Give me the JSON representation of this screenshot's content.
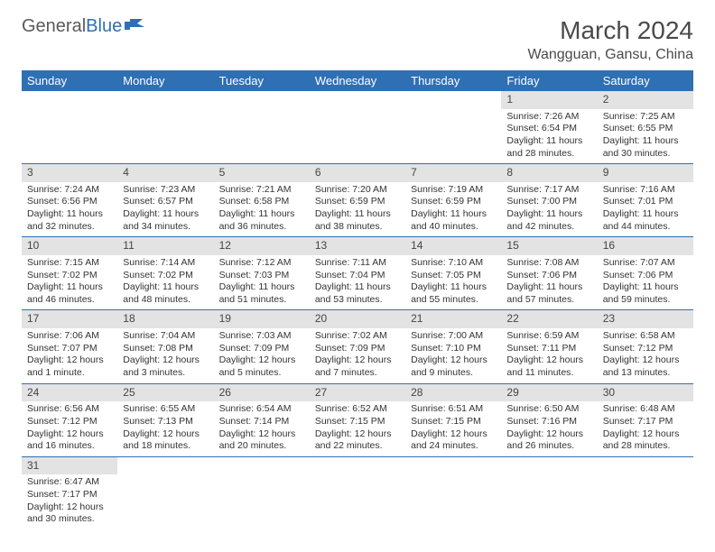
{
  "logo": {
    "text_a": "General",
    "text_b": "Blue"
  },
  "title": "March 2024",
  "location": "Wangguan, Gansu, China",
  "colors": {
    "header_bg": "#2f6fb4",
    "header_fg": "#ffffff",
    "daynum_bg": "#e3e3e3",
    "rule": "#2f6fb4",
    "logo_gray": "#5a5a5a",
    "logo_blue": "#2f6fb4"
  },
  "daynames": [
    "Sunday",
    "Monday",
    "Tuesday",
    "Wednesday",
    "Thursday",
    "Friday",
    "Saturday"
  ],
  "first_weekday": 5,
  "days": [
    {
      "n": 1,
      "sunrise": "7:26 AM",
      "sunset": "6:54 PM",
      "daylight": "11 hours and 28 minutes."
    },
    {
      "n": 2,
      "sunrise": "7:25 AM",
      "sunset": "6:55 PM",
      "daylight": "11 hours and 30 minutes."
    },
    {
      "n": 3,
      "sunrise": "7:24 AM",
      "sunset": "6:56 PM",
      "daylight": "11 hours and 32 minutes."
    },
    {
      "n": 4,
      "sunrise": "7:23 AM",
      "sunset": "6:57 PM",
      "daylight": "11 hours and 34 minutes."
    },
    {
      "n": 5,
      "sunrise": "7:21 AM",
      "sunset": "6:58 PM",
      "daylight": "11 hours and 36 minutes."
    },
    {
      "n": 6,
      "sunrise": "7:20 AM",
      "sunset": "6:59 PM",
      "daylight": "11 hours and 38 minutes."
    },
    {
      "n": 7,
      "sunrise": "7:19 AM",
      "sunset": "6:59 PM",
      "daylight": "11 hours and 40 minutes."
    },
    {
      "n": 8,
      "sunrise": "7:17 AM",
      "sunset": "7:00 PM",
      "daylight": "11 hours and 42 minutes."
    },
    {
      "n": 9,
      "sunrise": "7:16 AM",
      "sunset": "7:01 PM",
      "daylight": "11 hours and 44 minutes."
    },
    {
      "n": 10,
      "sunrise": "7:15 AM",
      "sunset": "7:02 PM",
      "daylight": "11 hours and 46 minutes."
    },
    {
      "n": 11,
      "sunrise": "7:14 AM",
      "sunset": "7:02 PM",
      "daylight": "11 hours and 48 minutes."
    },
    {
      "n": 12,
      "sunrise": "7:12 AM",
      "sunset": "7:03 PM",
      "daylight": "11 hours and 51 minutes."
    },
    {
      "n": 13,
      "sunrise": "7:11 AM",
      "sunset": "7:04 PM",
      "daylight": "11 hours and 53 minutes."
    },
    {
      "n": 14,
      "sunrise": "7:10 AM",
      "sunset": "7:05 PM",
      "daylight": "11 hours and 55 minutes."
    },
    {
      "n": 15,
      "sunrise": "7:08 AM",
      "sunset": "7:06 PM",
      "daylight": "11 hours and 57 minutes."
    },
    {
      "n": 16,
      "sunrise": "7:07 AM",
      "sunset": "7:06 PM",
      "daylight": "11 hours and 59 minutes."
    },
    {
      "n": 17,
      "sunrise": "7:06 AM",
      "sunset": "7:07 PM",
      "daylight": "12 hours and 1 minute."
    },
    {
      "n": 18,
      "sunrise": "7:04 AM",
      "sunset": "7:08 PM",
      "daylight": "12 hours and 3 minutes."
    },
    {
      "n": 19,
      "sunrise": "7:03 AM",
      "sunset": "7:09 PM",
      "daylight": "12 hours and 5 minutes."
    },
    {
      "n": 20,
      "sunrise": "7:02 AM",
      "sunset": "7:09 PM",
      "daylight": "12 hours and 7 minutes."
    },
    {
      "n": 21,
      "sunrise": "7:00 AM",
      "sunset": "7:10 PM",
      "daylight": "12 hours and 9 minutes."
    },
    {
      "n": 22,
      "sunrise": "6:59 AM",
      "sunset": "7:11 PM",
      "daylight": "12 hours and 11 minutes."
    },
    {
      "n": 23,
      "sunrise": "6:58 AM",
      "sunset": "7:12 PM",
      "daylight": "12 hours and 13 minutes."
    },
    {
      "n": 24,
      "sunrise": "6:56 AM",
      "sunset": "7:12 PM",
      "daylight": "12 hours and 16 minutes."
    },
    {
      "n": 25,
      "sunrise": "6:55 AM",
      "sunset": "7:13 PM",
      "daylight": "12 hours and 18 minutes."
    },
    {
      "n": 26,
      "sunrise": "6:54 AM",
      "sunset": "7:14 PM",
      "daylight": "12 hours and 20 minutes."
    },
    {
      "n": 27,
      "sunrise": "6:52 AM",
      "sunset": "7:15 PM",
      "daylight": "12 hours and 22 minutes."
    },
    {
      "n": 28,
      "sunrise": "6:51 AM",
      "sunset": "7:15 PM",
      "daylight": "12 hours and 24 minutes."
    },
    {
      "n": 29,
      "sunrise": "6:50 AM",
      "sunset": "7:16 PM",
      "daylight": "12 hours and 26 minutes."
    },
    {
      "n": 30,
      "sunrise": "6:48 AM",
      "sunset": "7:17 PM",
      "daylight": "12 hours and 28 minutes."
    },
    {
      "n": 31,
      "sunrise": "6:47 AM",
      "sunset": "7:17 PM",
      "daylight": "12 hours and 30 minutes."
    }
  ],
  "labels": {
    "sunrise": "Sunrise:",
    "sunset": "Sunset:",
    "daylight": "Daylight:"
  }
}
